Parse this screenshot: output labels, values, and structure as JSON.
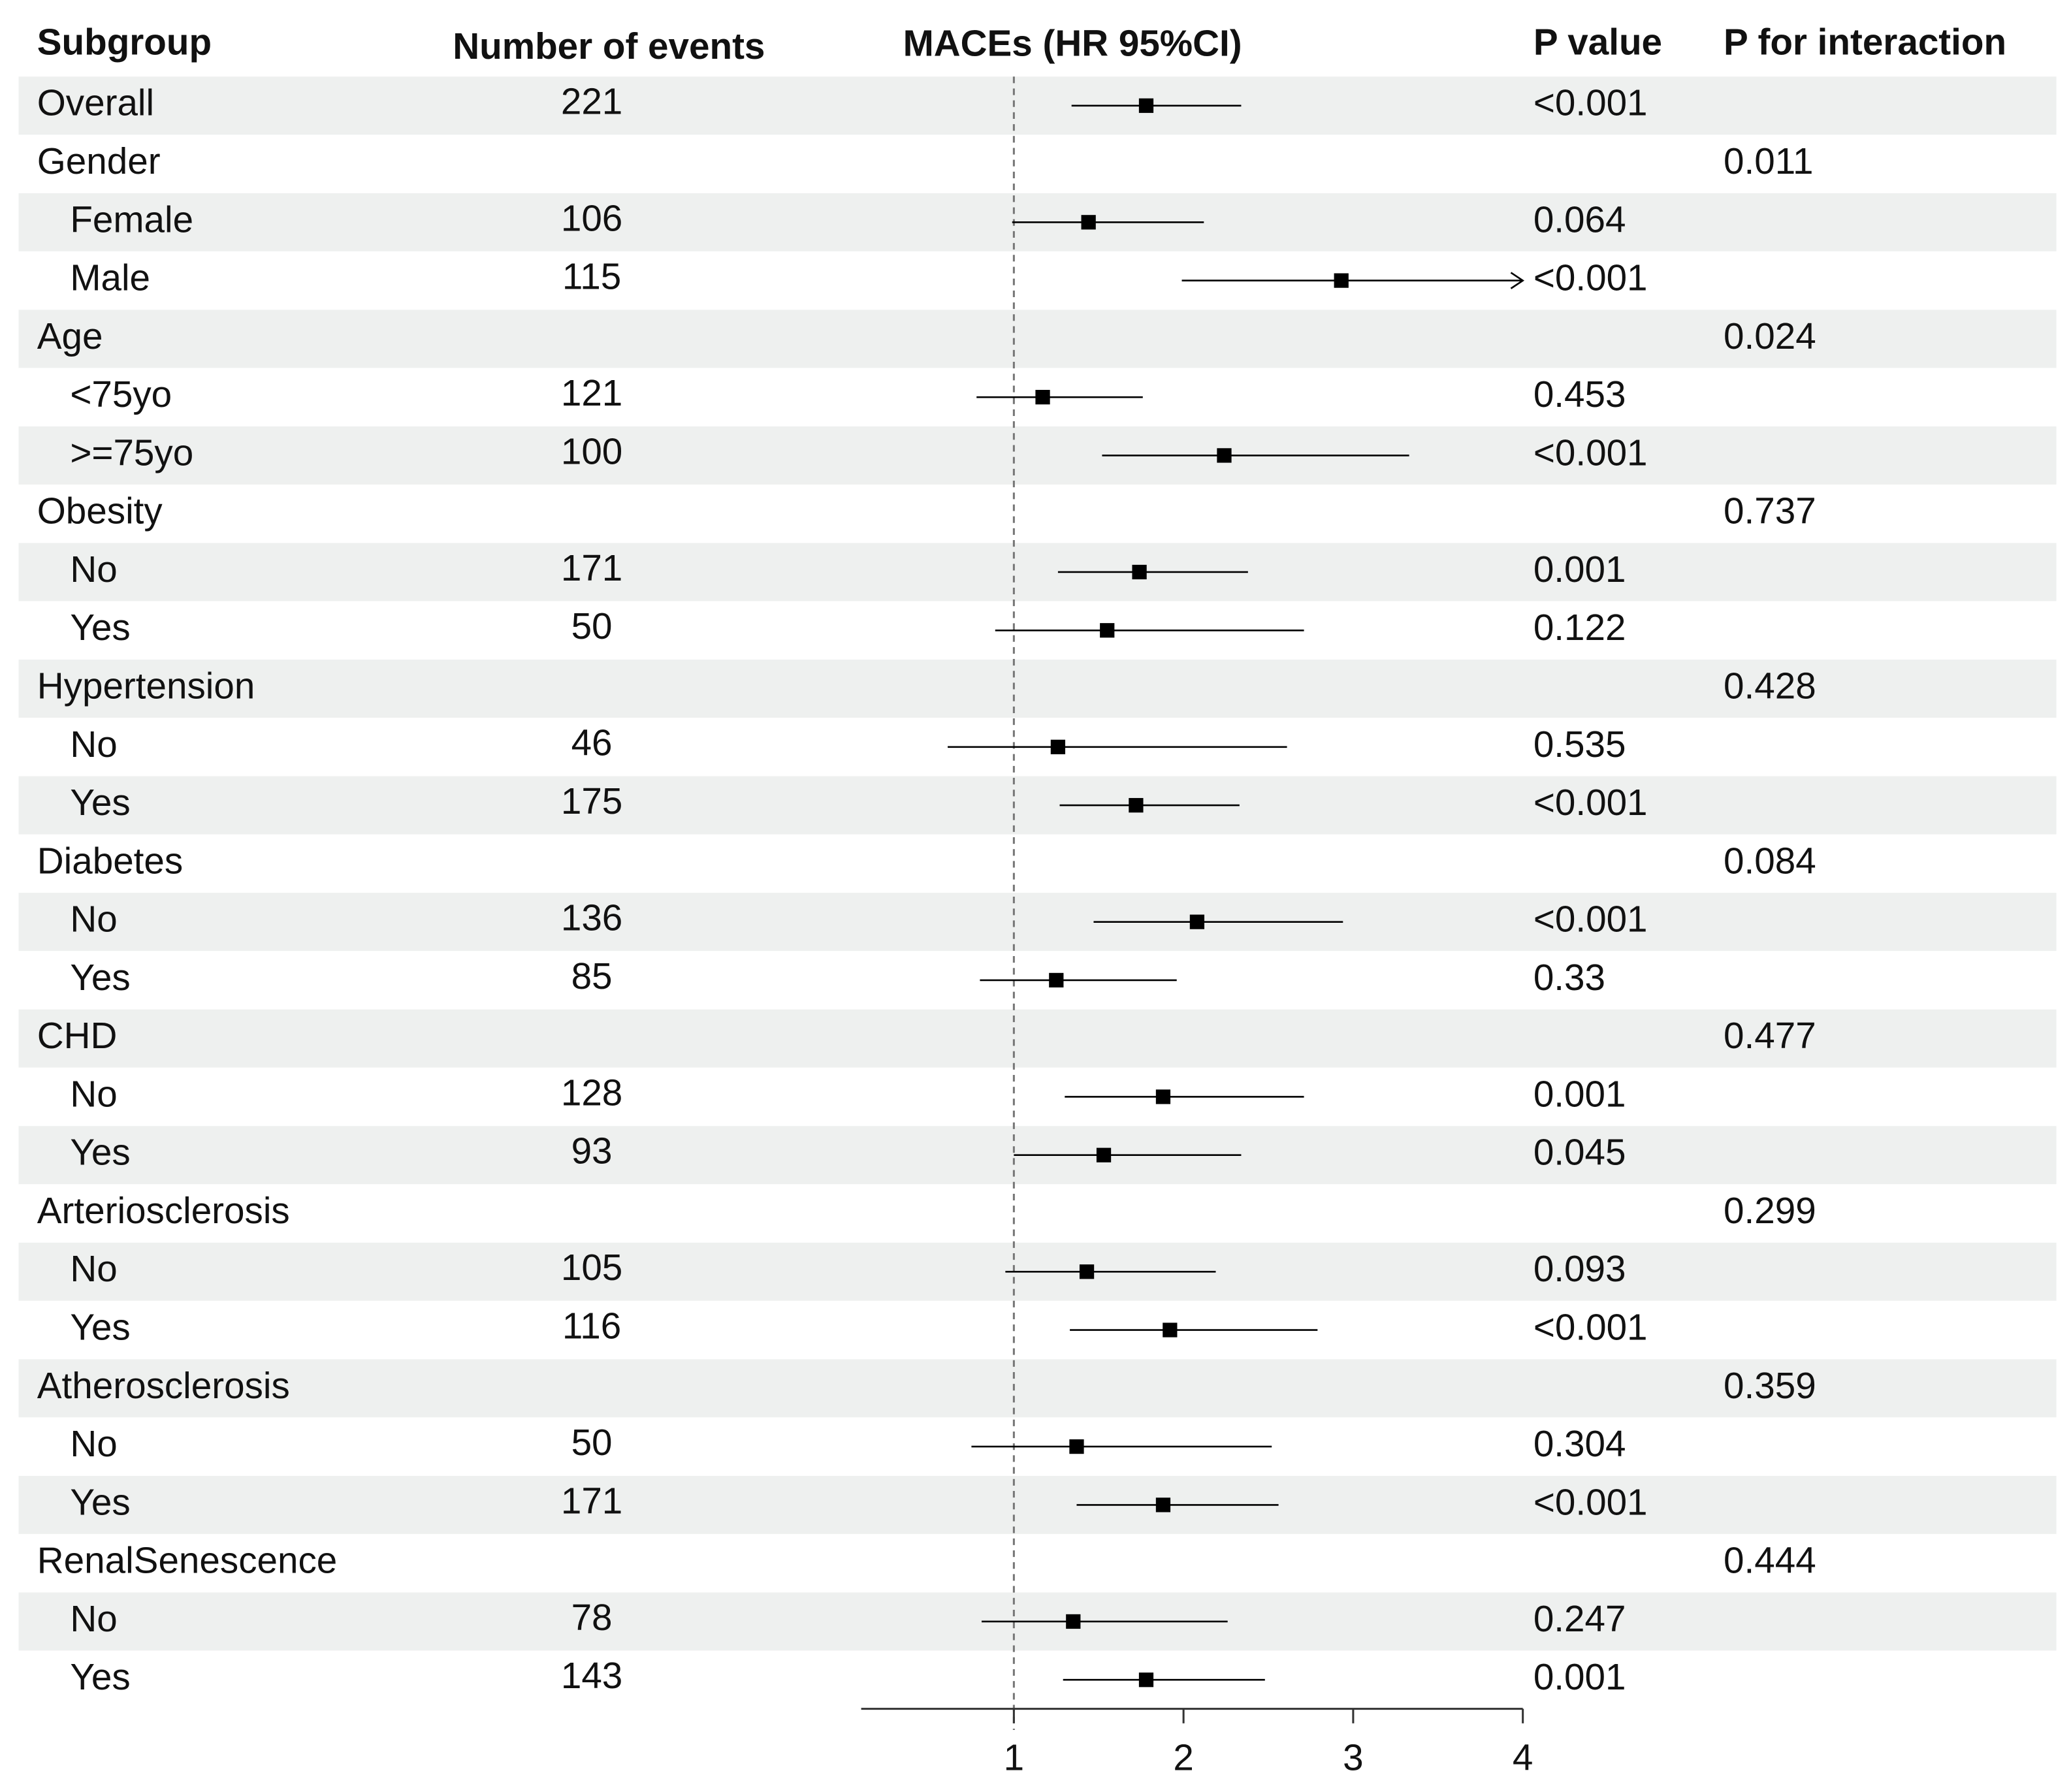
{
  "chart_data": {
    "type": "forest",
    "columns": [
      "Subgroup",
      "Number of events",
      "MACEs (HR 95%CI)",
      "P value",
      "P for interaction"
    ],
    "overall": {
      "label": "Overall",
      "events": 221,
      "hr": 1.78,
      "lower": 1.34,
      "upper": 2.34,
      "p": "<0.001"
    },
    "groups": [
      {
        "name": "Gender",
        "p_interaction": "0.011",
        "rows": [
          {
            "label": "Female",
            "events": 106,
            "hr": 1.44,
            "lower": 0.99,
            "upper": 2.12,
            "p": "0.064"
          },
          {
            "label": "Male",
            "events": 115,
            "hr": 2.93,
            "lower": 1.99,
            "upper": 4.5,
            "p": "<0.001"
          }
        ]
      },
      {
        "name": "Age",
        "p_interaction": "0.024",
        "rows": [
          {
            "label": "<75yo",
            "events": 121,
            "hr": 1.17,
            "lower": 0.78,
            "upper": 1.76,
            "p": "0.453"
          },
          {
            "label": ">=75yo",
            "events": 100,
            "hr": 2.24,
            "lower": 1.52,
            "upper": 3.33,
            "p": "<0.001"
          }
        ]
      },
      {
        "name": "Obesity",
        "p_interaction": "0.737",
        "rows": [
          {
            "label": "No",
            "events": 171,
            "hr": 1.74,
            "lower": 1.26,
            "upper": 2.38,
            "p": "0.001"
          },
          {
            "label": "Yes",
            "events": 50,
            "hr": 1.55,
            "lower": 0.89,
            "upper": 2.71,
            "p": "0.122"
          }
        ]
      },
      {
        "name": "Hypertension",
        "p_interaction": "0.428",
        "rows": [
          {
            "label": "No",
            "events": 46,
            "hr": 1.26,
            "lower": 0.61,
            "upper": 2.61,
            "p": "0.535"
          },
          {
            "label": "Yes",
            "events": 175,
            "hr": 1.72,
            "lower": 1.27,
            "upper": 2.33,
            "p": "<0.001"
          }
        ]
      },
      {
        "name": "Diabetes",
        "p_interaction": "0.084",
        "rows": [
          {
            "label": "No",
            "events": 136,
            "hr": 2.08,
            "lower": 1.47,
            "upper": 2.94,
            "p": "<0.001"
          },
          {
            "label": "Yes",
            "events": 85,
            "hr": 1.25,
            "lower": 0.8,
            "upper": 1.96,
            "p": "0.33"
          }
        ]
      },
      {
        "name": "CHD",
        "p_interaction": "0.477",
        "rows": [
          {
            "label": "No",
            "events": 128,
            "hr": 1.88,
            "lower": 1.3,
            "upper": 2.71,
            "p": "0.001"
          },
          {
            "label": "Yes",
            "events": 93,
            "hr": 1.53,
            "lower": 1.0,
            "upper": 2.34,
            "p": "0.045"
          }
        ]
      },
      {
        "name": "Arteriosclerosis",
        "p_interaction": "0.299",
        "rows": [
          {
            "label": "No",
            "events": 105,
            "hr": 1.43,
            "lower": 0.95,
            "upper": 2.19,
            "p": "0.093"
          },
          {
            "label": "Yes",
            "events": 116,
            "hr": 1.92,
            "lower": 1.33,
            "upper": 2.79,
            "p": "<0.001"
          }
        ]
      },
      {
        "name": "Atherosclerosis",
        "p_interaction": "0.359",
        "rows": [
          {
            "label": "No",
            "events": 50,
            "hr": 1.37,
            "lower": 0.75,
            "upper": 2.52,
            "p": "0.304"
          },
          {
            "label": "Yes",
            "events": 171,
            "hr": 1.88,
            "lower": 1.37,
            "upper": 2.56,
            "p": "<0.001"
          }
        ]
      },
      {
        "name": "RenalSenescence",
        "p_interaction": "0.444",
        "rows": [
          {
            "label": "No",
            "events": 78,
            "hr": 1.35,
            "lower": 0.81,
            "upper": 2.26,
            "p": "0.247"
          },
          {
            "label": "Yes",
            "events": 143,
            "hr": 1.78,
            "lower": 1.29,
            "upper": 2.48,
            "p": "0.001"
          }
        ]
      }
    ],
    "xlim": [
      0.1,
      4
    ],
    "xticks": [
      1,
      2,
      3,
      4
    ],
    "reference_line": 1,
    "color": "#000000",
    "row_shading": "#eef0ef"
  }
}
